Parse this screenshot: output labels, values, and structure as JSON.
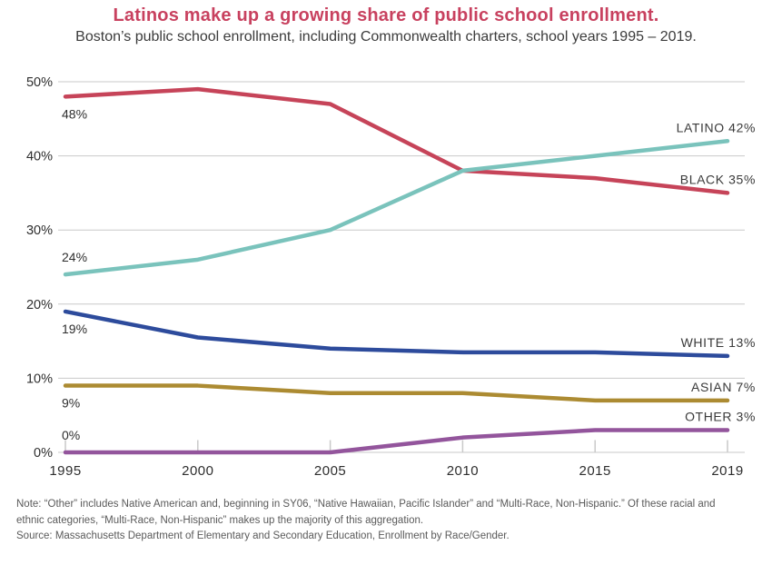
{
  "header": {
    "title": "Latinos make up a growing share of public school enrollment.",
    "subtitle": "Boston’s public school enrollment, including Commonwealth charters, school years 1995 – 2019."
  },
  "chart_data": {
    "type": "line",
    "title": "Latinos make up a growing share of public school enrollment.",
    "subtitle": "Boston’s public school enrollment, including Commonwealth charters, school years 1995 – 2019.",
    "x": [
      1995,
      2000,
      2005,
      2010,
      2015,
      2019
    ],
    "x_tick_labels": [
      "1995",
      "2000",
      "2005",
      "2010",
      "2015",
      "2019"
    ],
    "y_ticks": [
      0,
      10,
      20,
      30,
      40,
      50
    ],
    "y_tick_labels": [
      "0%",
      "10%",
      "20%",
      "30%",
      "40%",
      "50%"
    ],
    "ylim": [
      0,
      50
    ],
    "grid": "horizontal-only",
    "legend_position": "labels-at-line-ends",
    "series": [
      {
        "name": "BLACK",
        "color": "#c64459",
        "values": [
          48,
          49,
          47,
          38,
          37,
          35
        ],
        "start_label": "48%",
        "start_label_pos": "below",
        "end_label": "BLACK 35%"
      },
      {
        "name": "LATINO",
        "color": "#7ac3bc",
        "values": [
          24,
          26,
          30,
          38,
          40,
          42
        ],
        "start_label": "24%",
        "start_label_pos": "above",
        "end_label": "LATINO 42%"
      },
      {
        "name": "WHITE",
        "color": "#2d4b9c",
        "values": [
          19,
          15.5,
          14,
          13.5,
          13.5,
          13
        ],
        "start_label": "19%",
        "start_label_pos": "below",
        "end_label": "WHITE 13%"
      },
      {
        "name": "ASIAN",
        "color": "#ac8b32",
        "values": [
          9,
          9,
          8,
          8,
          7,
          7
        ],
        "start_label": "9%",
        "start_label_pos": "below",
        "end_label": "ASIAN 7%"
      },
      {
        "name": "OTHER",
        "color": "#93559c",
        "values": [
          0,
          0,
          0,
          2,
          3,
          3
        ],
        "start_label": "0%",
        "start_label_pos": "above",
        "end_label": "OTHER 3%"
      }
    ],
    "colors": {
      "title": "#c8415f",
      "gridline": "#c9c9c9",
      "axis_text": "#2e2e2e",
      "note_text": "#5a5a5a"
    }
  },
  "footer": {
    "note": "Note: “Other” includes Native American and, beginning in SY06, “Native Hawaiian, Pacific Islander” and “Multi-Race, Non-Hispanic.” Of these racial and ethnic categories, “Multi-Race, Non-Hispanic” makes up the majority of this aggregation.",
    "source": "Source: Massachusetts Department of Elementary and Secondary Education, Enrollment by Race/Gender."
  }
}
